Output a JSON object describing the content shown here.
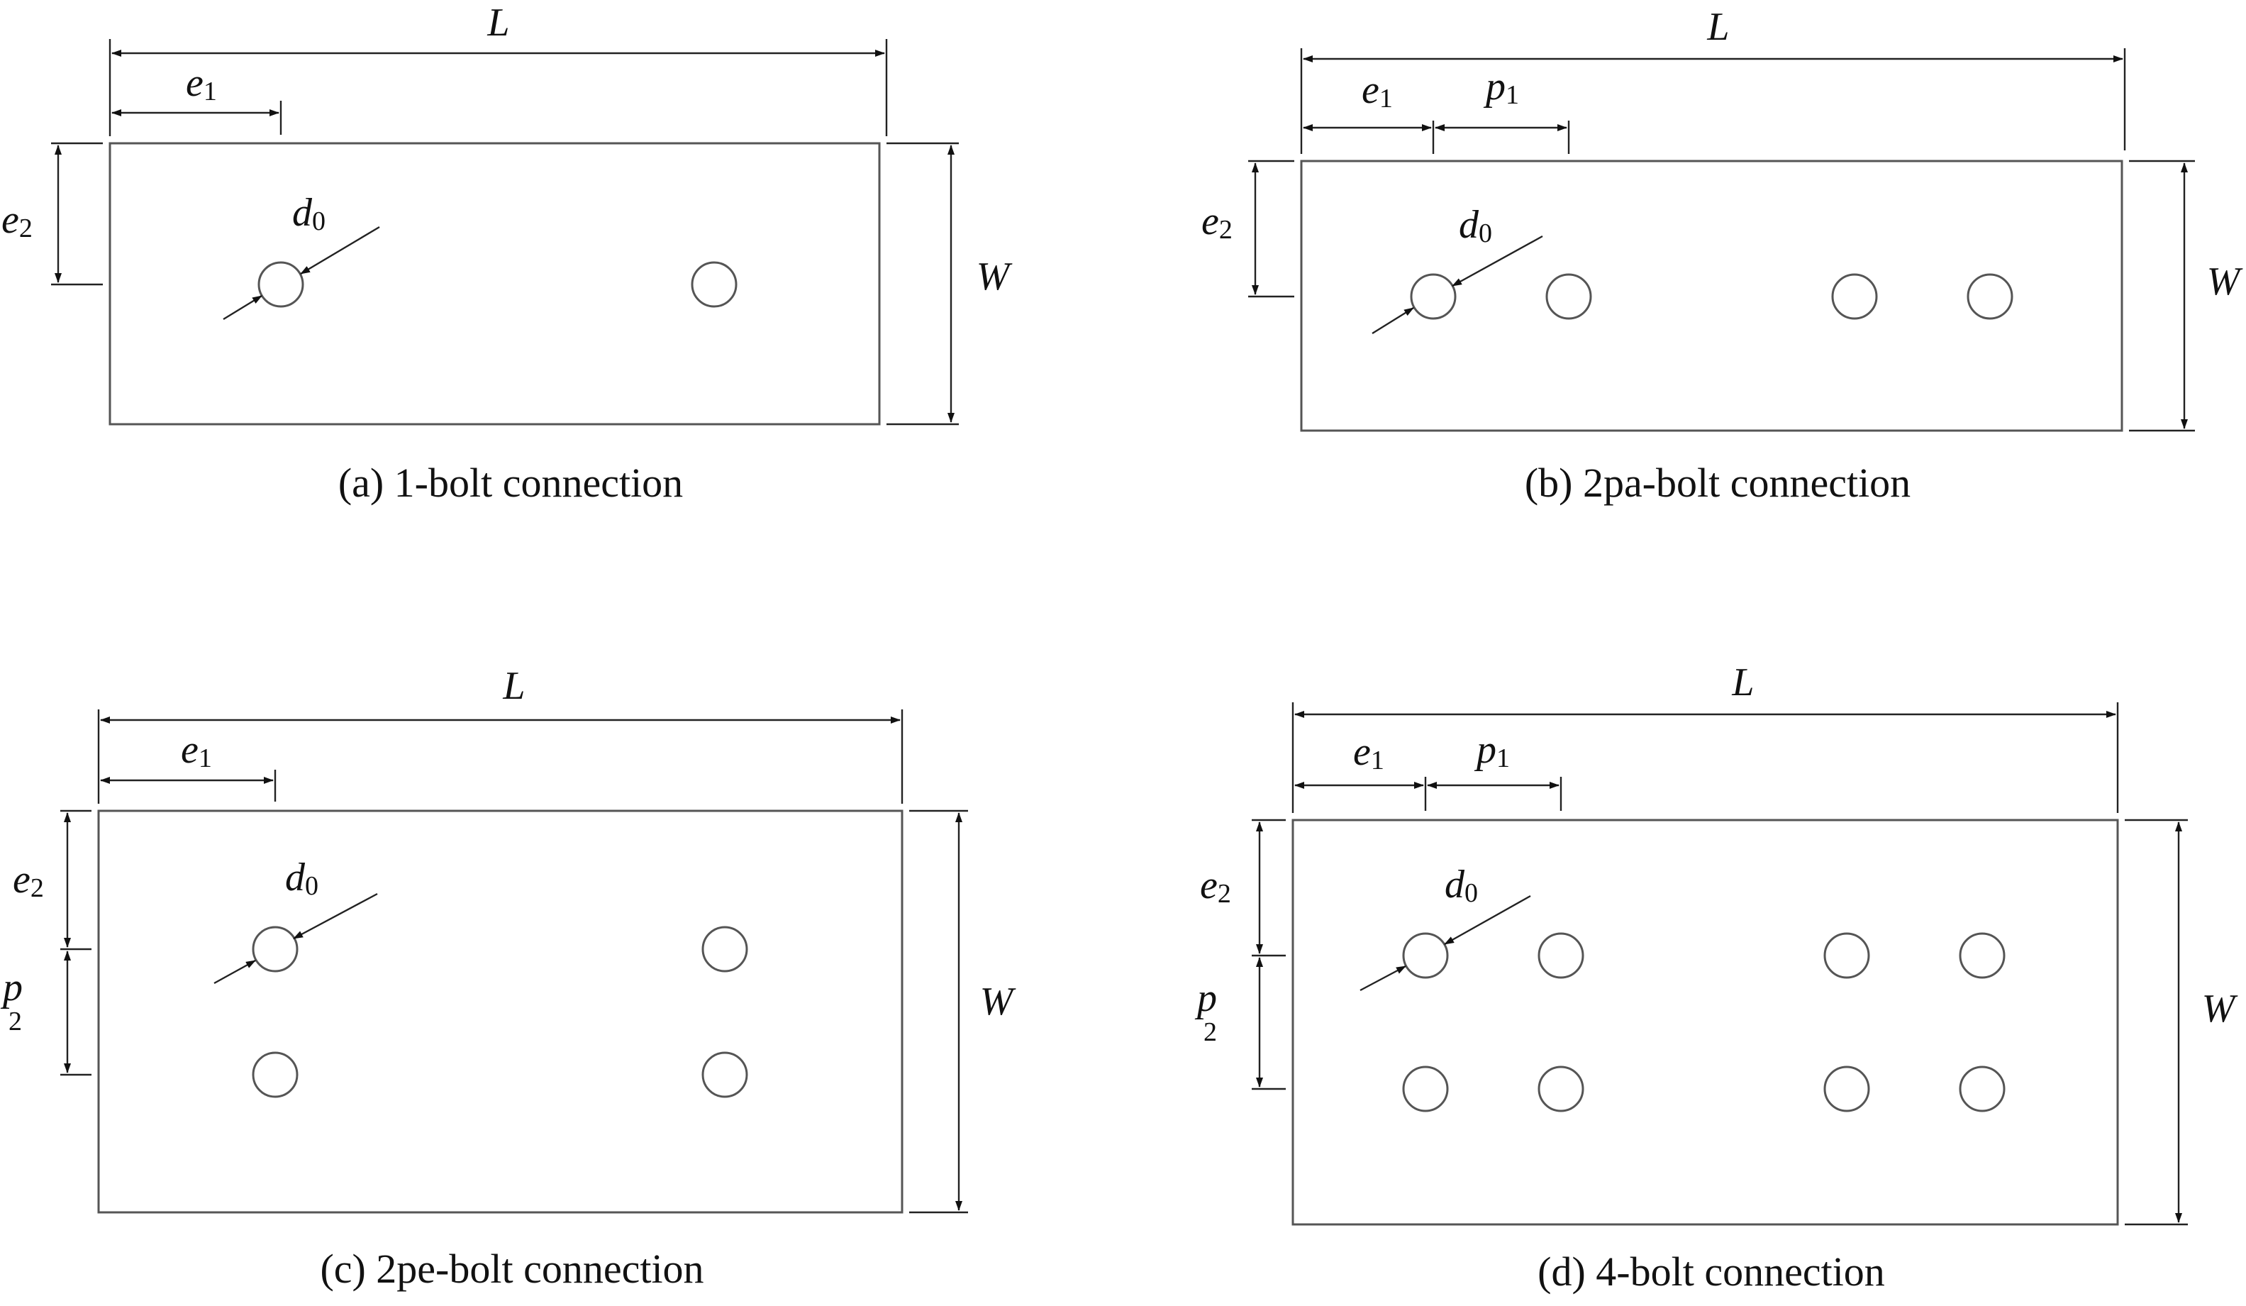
{
  "panels": [
    {
      "caption": "(a) 1-bolt connection",
      "labels": {
        "L": "L",
        "W": "W",
        "e1": "e",
        "e1_sub": "1",
        "e2": "e",
        "e2_sub": "2",
        "d0": "d",
        "d0_sub": "0"
      }
    },
    {
      "caption": "(b) 2pa-bolt connection",
      "labels": {
        "L": "L",
        "W": "W",
        "e1": "e",
        "e1_sub": "1",
        "p1": "p",
        "p1_sub": "1",
        "e2": "e",
        "e2_sub": "2",
        "d0": "d",
        "d0_sub": "0"
      }
    },
    {
      "caption": "(c) 2pe-bolt connection",
      "labels": {
        "L": "L",
        "W": "W",
        "e1": "e",
        "e1_sub": "1",
        "e2": "e",
        "e2_sub": "2",
        "p2": "p",
        "p2_sub": "2",
        "d0": "d",
        "d0_sub": "0"
      }
    },
    {
      "caption": "(d) 4-bolt connection",
      "labels": {
        "L": "L",
        "W": "W",
        "e1": "e",
        "e1_sub": "1",
        "p1": "p",
        "p1_sub": "1",
        "e2": "e",
        "e2_sub": "2",
        "p2": "p",
        "p2_sub": "2",
        "d0": "d",
        "d0_sub": "0"
      }
    }
  ]
}
